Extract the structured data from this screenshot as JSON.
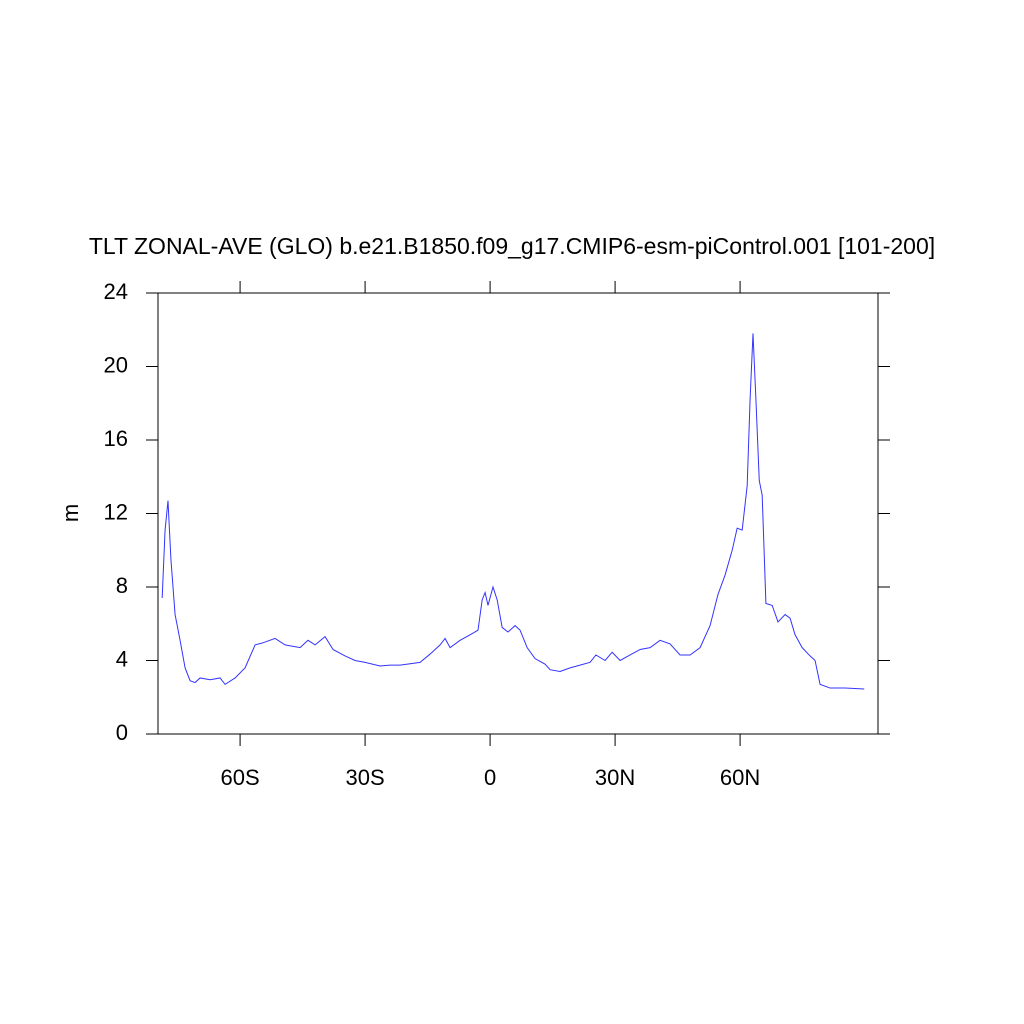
{
  "chart_data": {
    "type": "line",
    "title": "TLT ZONAL-AVE (GLO) b.e21.B1850.f09_g17.CMIP6-esm-piControl.001 [101-200]",
    "y_label": "m",
    "xlim": [
      -79.7,
      93.1
    ],
    "ylim": [
      0,
      24
    ],
    "xticks": [
      {
        "value": -60,
        "label": "60S"
      },
      {
        "value": -30,
        "label": "30S"
      },
      0,
      {
        "value": 30,
        "label": "30N"
      },
      {
        "value": 60,
        "label": "60N"
      }
    ],
    "yticks": [
      0,
      4,
      8,
      12,
      16,
      20,
      24
    ],
    "x": [
      -78.7,
      -78.0,
      -77.3,
      -76.6,
      -75.6,
      -74.4,
      -73.2,
      -72.0,
      -70.8,
      -69.6,
      -67.2,
      -64.8,
      -63.6,
      -61.2,
      -58.8,
      -56.4,
      -54.7,
      -51.6,
      -49.2,
      -45.6,
      -43.7,
      -42.0,
      -39.6,
      -37.7,
      -34.8,
      -32.4,
      -30.0,
      -26.4,
      -24.0,
      -21.6,
      -16.8,
      -14.4,
      -12.0,
      -10.8,
      -9.6,
      -7.2,
      -4.8,
      -2.9,
      -1.9,
      -1.2,
      -0.5,
      0.7,
      1.7,
      2.9,
      4.3,
      6.0,
      7.2,
      8.9,
      10.8,
      13.2,
      14.4,
      16.8,
      19.2,
      21.6,
      24.0,
      25.4,
      27.6,
      29.3,
      31.2,
      33.6,
      36.0,
      38.4,
      40.8,
      43.2,
      45.6,
      48.0,
      50.4,
      52.8,
      54.7,
      56.4,
      58.1,
      59.3,
      60.5,
      61.7,
      62.4,
      63.1,
      63.8,
      64.6,
      65.3,
      66.2,
      67.7,
      69.1,
      70.8,
      72.0,
      73.2,
      74.9,
      76.8,
      78.0,
      79.2,
      81.6,
      85.2,
      89.8
    ],
    "series": [
      {
        "color": "#3333ff",
        "values": [
          7.4,
          11.1,
          12.7,
          9.5,
          6.5,
          5.1,
          3.6,
          2.9,
          2.8,
          3.05,
          2.95,
          3.05,
          2.7,
          3.05,
          3.6,
          4.85,
          4.95,
          5.2,
          4.85,
          4.7,
          5.1,
          4.85,
          5.3,
          4.6,
          4.25,
          4.0,
          3.9,
          3.7,
          3.75,
          3.75,
          3.9,
          4.35,
          4.85,
          5.2,
          4.7,
          5.1,
          5.4,
          5.65,
          7.3,
          7.7,
          7.0,
          8.0,
          7.3,
          5.8,
          5.55,
          5.9,
          5.65,
          4.7,
          4.1,
          3.8,
          3.5,
          3.4,
          3.6,
          3.75,
          3.9,
          4.3,
          4.0,
          4.45,
          4.0,
          4.3,
          4.6,
          4.7,
          5.1,
          4.9,
          4.3,
          4.3,
          4.7,
          5.9,
          7.6,
          8.65,
          10.0,
          11.2,
          11.1,
          13.5,
          18.2,
          21.8,
          18.2,
          13.8,
          13.0,
          7.1,
          7.0,
          6.1,
          6.5,
          6.3,
          5.4,
          4.7,
          4.25,
          4.0,
          2.7,
          2.5,
          2.5,
          2.45
        ]
      }
    ]
  }
}
